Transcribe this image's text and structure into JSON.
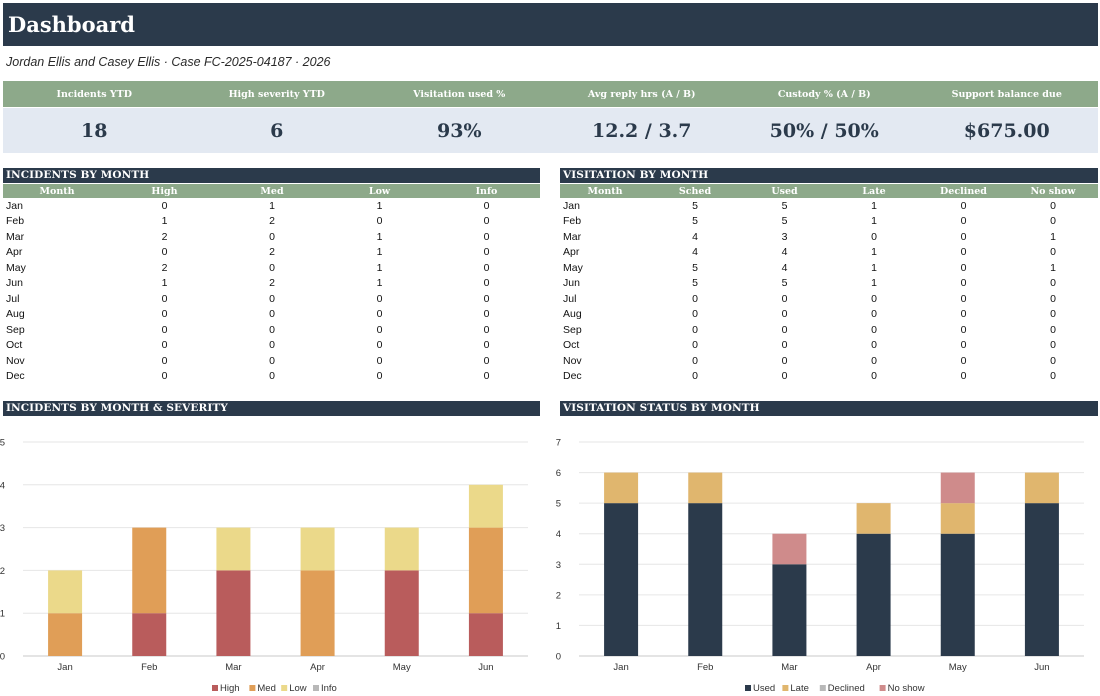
{
  "header": {
    "title": "Dashboard",
    "subtitle": "Jordan Ellis and Casey Ellis  ·  Case FC-2025-04187  ·  2026"
  },
  "kpis": [
    {
      "label": "Incidents YTD",
      "value": "18"
    },
    {
      "label": "High severity YTD",
      "value": "6"
    },
    {
      "label": "Visitation used %",
      "value": "93%"
    },
    {
      "label": "Avg reply hrs (A / B)",
      "value": "12.2 / 3.7"
    },
    {
      "label": "Custody % (A / B)",
      "value": "50% / 50%"
    },
    {
      "label": "Support balance due",
      "value": "$675.00"
    }
  ],
  "incidents_table": {
    "title": "INCIDENTS BY MONTH",
    "columns": [
      "Month",
      "High",
      "Med",
      "Low",
      "Info"
    ],
    "rows": [
      [
        "Jan",
        "0",
        "1",
        "1",
        "0"
      ],
      [
        "Feb",
        "1",
        "2",
        "0",
        "0"
      ],
      [
        "Mar",
        "2",
        "0",
        "1",
        "0"
      ],
      [
        "Apr",
        "0",
        "2",
        "1",
        "0"
      ],
      [
        "May",
        "2",
        "0",
        "1",
        "0"
      ],
      [
        "Jun",
        "1",
        "2",
        "1",
        "0"
      ],
      [
        "Jul",
        "0",
        "0",
        "0",
        "0"
      ],
      [
        "Aug",
        "0",
        "0",
        "0",
        "0"
      ],
      [
        "Sep",
        "0",
        "0",
        "0",
        "0"
      ],
      [
        "Oct",
        "0",
        "0",
        "0",
        "0"
      ],
      [
        "Nov",
        "0",
        "0",
        "0",
        "0"
      ],
      [
        "Dec",
        "0",
        "0",
        "0",
        "0"
      ]
    ]
  },
  "visitation_table": {
    "title": "VISITATION BY MONTH",
    "columns": [
      "Month",
      "Sched",
      "Used",
      "Late",
      "Declined",
      "No show"
    ],
    "rows": [
      [
        "Jan",
        "5",
        "5",
        "1",
        "0",
        "0"
      ],
      [
        "Feb",
        "5",
        "5",
        "1",
        "0",
        "0"
      ],
      [
        "Mar",
        "4",
        "3",
        "0",
        "0",
        "1"
      ],
      [
        "Apr",
        "4",
        "4",
        "1",
        "0",
        "0"
      ],
      [
        "May",
        "5",
        "4",
        "1",
        "0",
        "1"
      ],
      [
        "Jun",
        "5",
        "5",
        "1",
        "0",
        "0"
      ],
      [
        "Jul",
        "0",
        "0",
        "0",
        "0",
        "0"
      ],
      [
        "Aug",
        "0",
        "0",
        "0",
        "0",
        "0"
      ],
      [
        "Sep",
        "0",
        "0",
        "0",
        "0",
        "0"
      ],
      [
        "Oct",
        "0",
        "0",
        "0",
        "0",
        "0"
      ],
      [
        "Nov",
        "0",
        "0",
        "0",
        "0",
        "0"
      ],
      [
        "Dec",
        "0",
        "0",
        "0",
        "0",
        "0"
      ]
    ]
  },
  "charts": {
    "incidents_title": "INCIDENTS BY MONTH & SEVERITY",
    "visitation_title": "VISITATION STATUS BY MONTH"
  },
  "chart_data": [
    {
      "type": "bar",
      "stacked": true,
      "title": "INCIDENTS BY MONTH & SEVERITY",
      "categories": [
        "Jan",
        "Feb",
        "Mar",
        "Apr",
        "May",
        "Jun"
      ],
      "ylim": [
        0,
        5
      ],
      "yticks": [
        0,
        1,
        2,
        3,
        4,
        5
      ],
      "grid": true,
      "legend": "bottom",
      "series": [
        {
          "name": "High",
          "color": "#b95c5c",
          "values": [
            0,
            1,
            2,
            0,
            2,
            1
          ]
        },
        {
          "name": "Med",
          "color": "#e09e57",
          "values": [
            1,
            2,
            0,
            2,
            0,
            2
          ]
        },
        {
          "name": "Low",
          "color": "#ebd98a",
          "values": [
            1,
            0,
            1,
            1,
            1,
            1
          ]
        },
        {
          "name": "Info",
          "color": "#b8b8b8",
          "values": [
            0,
            0,
            0,
            0,
            0,
            0
          ]
        }
      ]
    },
    {
      "type": "bar",
      "stacked": true,
      "title": "VISITATION STATUS BY MONTH",
      "categories": [
        "Jan",
        "Feb",
        "Mar",
        "Apr",
        "May",
        "Jun"
      ],
      "ylim": [
        0,
        7
      ],
      "yticks": [
        0,
        1,
        2,
        3,
        4,
        5,
        6,
        7
      ],
      "grid": true,
      "legend": "bottom",
      "series": [
        {
          "name": "Used",
          "color": "#2b3a4b",
          "values": [
            5,
            5,
            3,
            4,
            4,
            5
          ]
        },
        {
          "name": "Late",
          "color": "#e0b66e",
          "values": [
            1,
            1,
            0,
            1,
            1,
            1
          ]
        },
        {
          "name": "Declined",
          "color": "#b8b8b8",
          "values": [
            0,
            0,
            0,
            0,
            0,
            0
          ]
        },
        {
          "name": "No show",
          "color": "#cf8b8b",
          "values": [
            0,
            0,
            1,
            0,
            1,
            0
          ]
        }
      ]
    }
  ]
}
